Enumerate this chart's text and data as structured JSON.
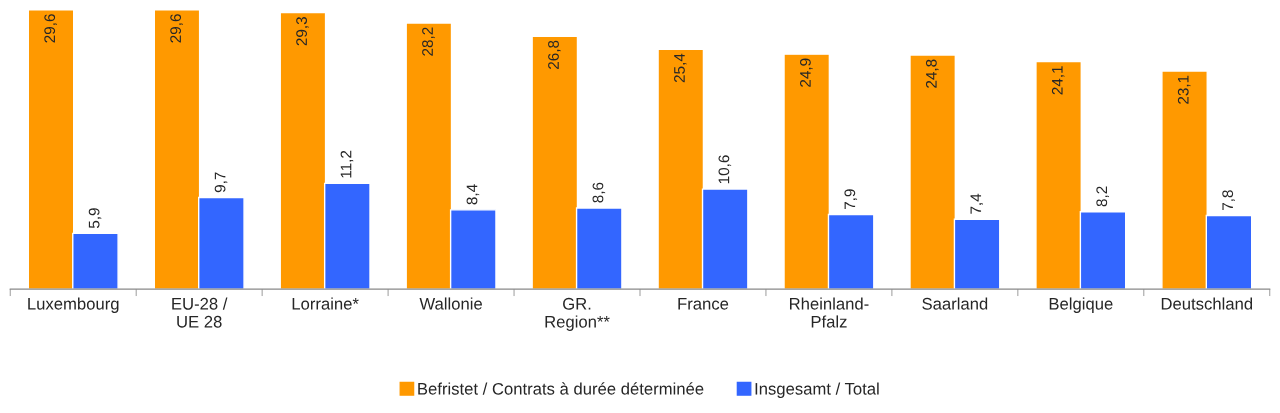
{
  "chart_data": {
    "type": "bar",
    "categories": [
      "Luxembourg",
      "EU-28 /\nUE 28",
      "Lorraine*",
      "Wallonie",
      "GR.\nRegion**",
      "France",
      "Rheinland-\nPfalz",
      "Saarland",
      "Belgique",
      "Deutschland"
    ],
    "series": [
      {
        "name": "Befristet / Contrats à durée déterminée",
        "color": "#ff9900",
        "values": [
          29.6,
          29.6,
          29.3,
          28.2,
          26.8,
          25.4,
          24.9,
          24.8,
          24.1,
          23.1
        ],
        "value_labels": [
          "29,6",
          "29,6",
          "29,3",
          "28,2",
          "26,8",
          "25,4",
          "24,9",
          "24,8",
          "24,1",
          "23,1"
        ]
      },
      {
        "name": "Insgesamt / Total",
        "color": "#3366ff",
        "values": [
          5.9,
          9.7,
          11.2,
          8.4,
          8.6,
          10.6,
          7.9,
          7.4,
          8.2,
          7.8
        ],
        "value_labels": [
          "5,9",
          "9,7",
          "11,2",
          "8,4",
          "8,6",
          "10,6",
          "7,9",
          "7,4",
          "8,2",
          "7,8"
        ]
      }
    ],
    "legend": "bottom",
    "grid": false,
    "tick_labels": "x"
  }
}
